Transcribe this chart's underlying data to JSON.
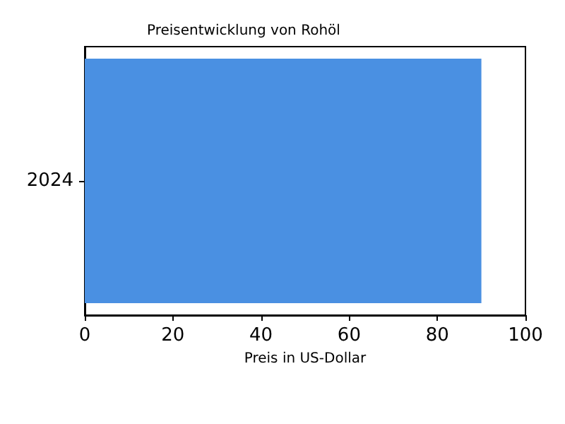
{
  "chart_data": {
    "type": "bar",
    "orientation": "horizontal",
    "title": "Preisentwicklung von Rohöl",
    "xlabel": "Preis in US-Dollar",
    "categories": [
      "2024"
    ],
    "series": [
      {
        "color": "#4a90e2",
        "values": [
          90
        ]
      }
    ],
    "xlim": [
      0,
      100
    ],
    "xticks": [
      0,
      20,
      40,
      60,
      80,
      100
    ],
    "grid": false
  }
}
